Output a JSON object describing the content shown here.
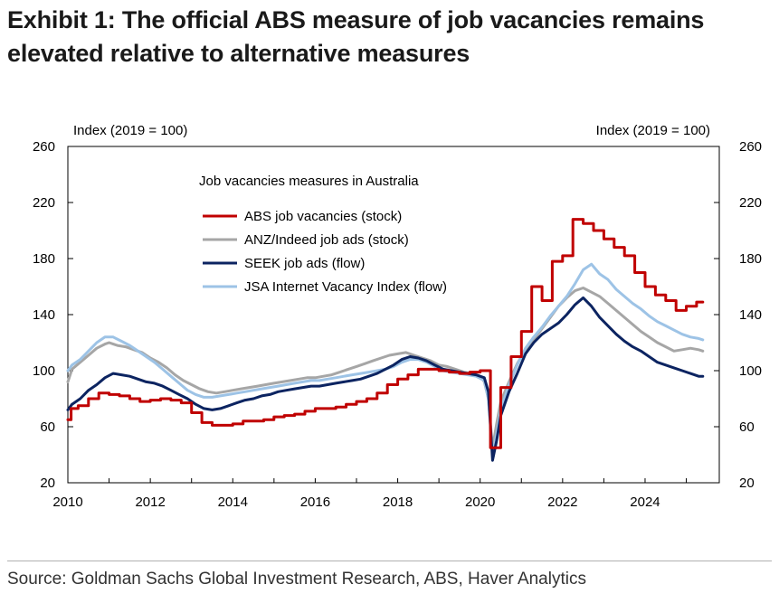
{
  "title_lines": [
    "Exhibit 1: The official ABS measure of job vacancies remains",
    "elevated relative to alternative measures"
  ],
  "source": "Source: Goldman Sachs Global Investment Research, ABS, Haver Analytics",
  "chart_data": {
    "type": "line",
    "legend_title": "Job vacancies measures in Australia",
    "y_unit_left": "Index (2019 = 100)",
    "y_unit_right": "Index (2019 = 100)",
    "ylim": [
      20,
      260
    ],
    "yticks": [
      20,
      60,
      100,
      140,
      180,
      220,
      260
    ],
    "xlim": [
      2010,
      2025.8
    ],
    "xticks": [
      2010,
      2012,
      2014,
      2016,
      2018,
      2020,
      2022,
      2024
    ],
    "grid": false,
    "legend_position": "top-left",
    "series": [
      {
        "name": "ABS job vacancies (stock)",
        "color": "#c00000",
        "step": true,
        "x": [
          2010.0,
          2010.08,
          2010.25,
          2010.5,
          2010.75,
          2011.0,
          2011.25,
          2011.5,
          2011.75,
          2012.0,
          2012.25,
          2012.5,
          2012.75,
          2013.0,
          2013.25,
          2013.5,
          2013.75,
          2014.0,
          2014.25,
          2014.5,
          2014.75,
          2015.0,
          2015.25,
          2015.5,
          2015.75,
          2016.0,
          2016.25,
          2016.5,
          2016.75,
          2017.0,
          2017.25,
          2017.5,
          2017.75,
          2018.0,
          2018.25,
          2018.5,
          2018.75,
          2019.0,
          2019.25,
          2019.5,
          2019.75,
          2020.0,
          2020.25,
          2020.5,
          2020.75,
          2021.0,
          2021.25,
          2021.5,
          2021.75,
          2022.0,
          2022.25,
          2022.5,
          2022.75,
          2023.0,
          2023.25,
          2023.5,
          2023.75,
          2024.0,
          2024.25,
          2024.5,
          2024.75,
          2025.0,
          2025.25,
          2025.4
        ],
        "y": [
          65,
          73,
          75,
          80,
          84,
          83,
          82,
          80,
          78,
          79,
          80,
          79,
          77,
          70,
          63,
          61,
          61,
          62,
          64,
          64,
          65,
          67,
          68,
          69,
          71,
          73,
          73,
          74,
          76,
          78,
          80,
          84,
          90,
          94,
          97,
          101,
          101,
          100,
          99,
          98,
          99,
          100,
          45,
          88,
          110,
          128,
          160,
          150,
          178,
          182,
          208,
          205,
          200,
          194,
          188,
          182,
          170,
          160,
          154,
          150,
          143,
          146,
          149,
          149
        ]
      },
      {
        "name": "ANZ/Indeed job ads (stock)",
        "color": "#a6a6a6",
        "x": [
          2010.0,
          2010.1,
          2010.3,
          2010.5,
          2010.7,
          2010.9,
          2011.0,
          2011.2,
          2011.4,
          2011.6,
          2011.8,
          2012.0,
          2012.2,
          2012.4,
          2012.6,
          2012.8,
          2013.0,
          2013.2,
          2013.4,
          2013.6,
          2013.8,
          2014.0,
          2014.2,
          2014.4,
          2014.6,
          2014.8,
          2015.0,
          2015.2,
          2015.4,
          2015.6,
          2015.8,
          2016.0,
          2016.2,
          2016.4,
          2016.6,
          2016.8,
          2017.0,
          2017.2,
          2017.4,
          2017.6,
          2017.8,
          2018.0,
          2018.2,
          2018.4,
          2018.6,
          2018.8,
          2019.0,
          2019.2,
          2019.4,
          2019.6,
          2019.8,
          2020.0,
          2020.1,
          2020.2,
          2020.3,
          2020.4,
          2020.5,
          2020.7,
          2020.9,
          2021.1,
          2021.3,
          2021.5,
          2021.7,
          2021.9,
          2022.1,
          2022.3,
          2022.5,
          2022.7,
          2022.9,
          2023.1,
          2023.3,
          2023.5,
          2023.7,
          2023.9,
          2024.1,
          2024.3,
          2024.5,
          2024.7,
          2024.9,
          2025.1,
          2025.3,
          2025.4
        ],
        "y": [
          92,
          101,
          106,
          111,
          116,
          119,
          120,
          118,
          117,
          115,
          113,
          109,
          106,
          102,
          97,
          93,
          90,
          87,
          85,
          84,
          85,
          86,
          87,
          88,
          89,
          90,
          91,
          92,
          93,
          94,
          95,
          95,
          96,
          97,
          99,
          101,
          103,
          105,
          107,
          109,
          111,
          112,
          113,
          111,
          109,
          107,
          104,
          103,
          101,
          99,
          98,
          96,
          92,
          80,
          45,
          62,
          78,
          92,
          105,
          115,
          122,
          130,
          138,
          146,
          152,
          157,
          159,
          156,
          153,
          148,
          143,
          138,
          133,
          128,
          124,
          120,
          117,
          114,
          115,
          116,
          115,
          114
        ]
      },
      {
        "name": "SEEK job ads (flow)",
        "color": "#0c2461",
        "x": [
          2010.0,
          2010.1,
          2010.3,
          2010.5,
          2010.7,
          2010.9,
          2011.1,
          2011.3,
          2011.5,
          2011.7,
          2011.9,
          2012.1,
          2012.3,
          2012.5,
          2012.7,
          2012.9,
          2013.1,
          2013.3,
          2013.5,
          2013.7,
          2013.9,
          2014.1,
          2014.3,
          2014.5,
          2014.7,
          2014.9,
          2015.1,
          2015.3,
          2015.5,
          2015.7,
          2015.9,
          2016.1,
          2016.3,
          2016.5,
          2016.7,
          2016.9,
          2017.1,
          2017.3,
          2017.5,
          2017.7,
          2017.9,
          2018.1,
          2018.3,
          2018.5,
          2018.7,
          2018.9,
          2019.1,
          2019.3,
          2019.5,
          2019.7,
          2019.9,
          2020.1,
          2020.2,
          2020.3,
          2020.4,
          2020.5,
          2020.7,
          2020.9,
          2021.1,
          2021.3,
          2021.5,
          2021.7,
          2021.9,
          2022.1,
          2022.3,
          2022.5,
          2022.7,
          2022.9,
          2023.1,
          2023.3,
          2023.5,
          2023.7,
          2023.9,
          2024.1,
          2024.3,
          2024.5,
          2024.7,
          2024.9,
          2025.1,
          2025.3,
          2025.4
        ],
        "y": [
          72,
          76,
          80,
          86,
          90,
          95,
          98,
          97,
          96,
          94,
          92,
          91,
          89,
          86,
          83,
          80,
          76,
          73,
          72,
          73,
          75,
          77,
          79,
          80,
          82,
          83,
          85,
          86,
          87,
          88,
          89,
          89,
          90,
          91,
          92,
          93,
          94,
          96,
          98,
          101,
          104,
          108,
          110,
          109,
          107,
          104,
          101,
          100,
          99,
          98,
          97,
          95,
          85,
          36,
          50,
          68,
          85,
          98,
          112,
          120,
          126,
          130,
          134,
          140,
          147,
          152,
          146,
          138,
          132,
          126,
          121,
          117,
          114,
          110,
          106,
          104,
          102,
          100,
          98,
          96,
          96
        ]
      },
      {
        "name": "JSA Internet Vacancy Index (flow)",
        "color": "#9dc3e6",
        "x": [
          2010.0,
          2010.1,
          2010.3,
          2010.5,
          2010.7,
          2010.9,
          2011.1,
          2011.3,
          2011.5,
          2011.7,
          2011.9,
          2012.1,
          2012.3,
          2012.5,
          2012.7,
          2012.9,
          2013.1,
          2013.3,
          2013.5,
          2013.7,
          2013.9,
          2014.1,
          2014.3,
          2014.5,
          2014.7,
          2014.9,
          2015.1,
          2015.3,
          2015.5,
          2015.7,
          2015.9,
          2016.1,
          2016.3,
          2016.5,
          2016.7,
          2016.9,
          2017.1,
          2017.3,
          2017.5,
          2017.7,
          2017.9,
          2018.1,
          2018.3,
          2018.5,
          2018.7,
          2018.9,
          2019.1,
          2019.3,
          2019.5,
          2019.7,
          2019.9,
          2020.1,
          2020.2,
          2020.3,
          2020.4,
          2020.5,
          2020.7,
          2020.9,
          2021.1,
          2021.3,
          2021.5,
          2021.7,
          2021.9,
          2022.1,
          2022.3,
          2022.5,
          2022.7,
          2022.9,
          2023.1,
          2023.3,
          2023.5,
          2023.7,
          2023.9,
          2024.1,
          2024.3,
          2024.5,
          2024.7,
          2024.9,
          2025.1,
          2025.3,
          2025.4
        ],
        "y": [
          100,
          104,
          108,
          114,
          120,
          124,
          124,
          121,
          118,
          114,
          110,
          106,
          101,
          96,
          91,
          86,
          83,
          81,
          81,
          82,
          83,
          84,
          85,
          86,
          87,
          88,
          89,
          90,
          91,
          92,
          93,
          93,
          94,
          95,
          96,
          97,
          98,
          99,
          100,
          101,
          103,
          106,
          108,
          108,
          106,
          103,
          100,
          99,
          98,
          97,
          96,
          93,
          80,
          40,
          55,
          72,
          90,
          104,
          116,
          124,
          131,
          139,
          146,
          153,
          162,
          172,
          176,
          169,
          165,
          158,
          153,
          148,
          144,
          139,
          135,
          132,
          129,
          126,
          124,
          123,
          122
        ]
      }
    ]
  }
}
